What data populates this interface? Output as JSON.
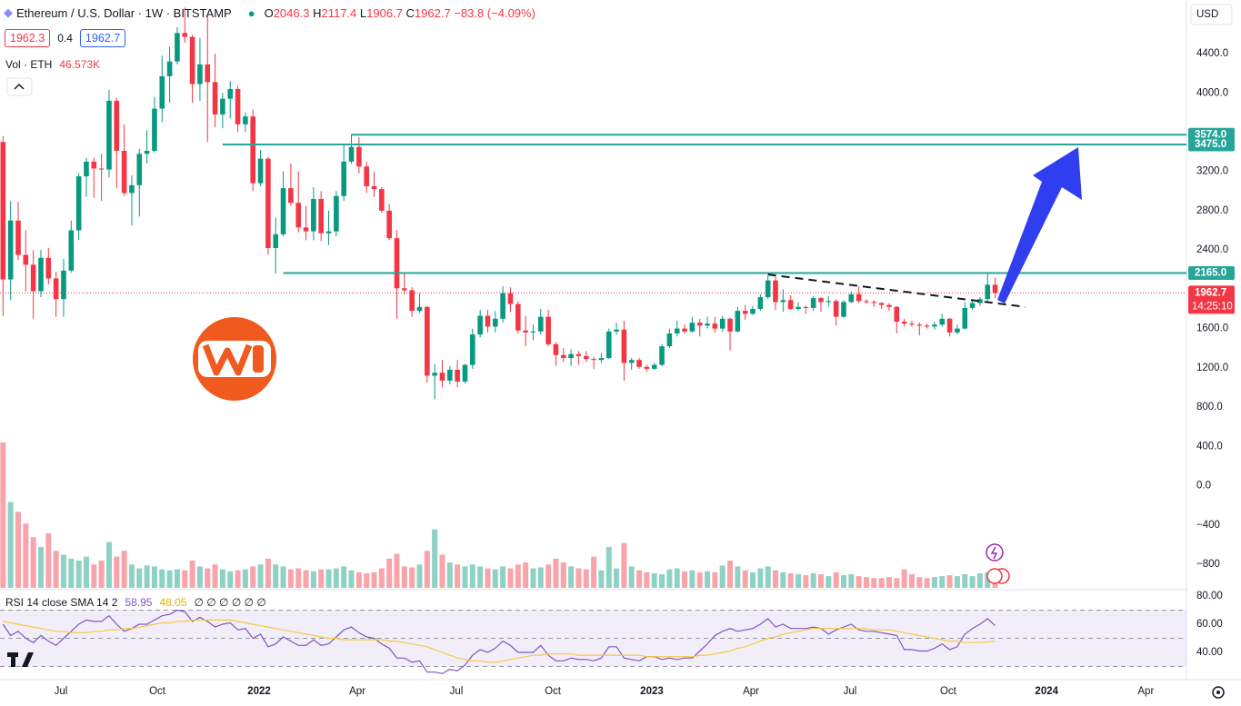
{
  "chart_data": {
    "type": "candlestick",
    "title": "Ethereum / U.S. Dollar · 1W · BITSTAMP",
    "ohlc_labels": [
      "O",
      "H",
      "L",
      "C"
    ],
    "change": "−83.8 (−4.09%)",
    "price_boxes": [
      "1962.3",
      "0.4",
      "1962.7"
    ],
    "currency": "USD",
    "countdown": "14:25:10",
    "up_color": "#089981",
    "down_color": "#f23645",
    "xlim": [
      -0.4,
      156.26
    ],
    "xticks": [
      {
        "value": 7.64,
        "label": "Jul"
      },
      {
        "value": 20.37,
        "label": "Oct"
      },
      {
        "value": 33.81,
        "label": "2022"
      },
      {
        "value": 46.78,
        "label": "Apr"
      },
      {
        "value": 59.86,
        "label": "Jul"
      },
      {
        "value": 72.59,
        "label": "Oct"
      },
      {
        "value": 85.67,
        "label": "2023"
      },
      {
        "value": 98.76,
        "label": "Apr"
      },
      {
        "value": 111.84,
        "label": "Jul"
      },
      {
        "value": 124.8,
        "label": "Oct"
      },
      {
        "value": 137.8,
        "label": "2024"
      },
      {
        "value": 150.9,
        "label": "Apr"
      }
    ],
    "ylim": [
      -1041,
      4946
    ],
    "yticks": [
      {
        "value": 4400,
        "label": "4400.0"
      },
      {
        "value": 4000,
        "label": "4000.0"
      },
      {
        "value": 3200,
        "label": "3200.0"
      },
      {
        "value": 2800,
        "label": "2800.0"
      },
      {
        "value": 2400,
        "label": "2400.0"
      },
      {
        "value": 1600,
        "label": "1600.0"
      },
      {
        "value": 1200,
        "label": "1200.0"
      },
      {
        "value": 800,
        "label": "800.0"
      },
      {
        "value": 400,
        "label": "400.0"
      },
      {
        "value": 0,
        "label": "0.0"
      },
      {
        "value": -400,
        "label": "−400"
      },
      {
        "value": -800,
        "label": "−800"
      }
    ],
    "levels": [
      {
        "value": 3574,
        "label": "3574.0",
        "from": 46
      },
      {
        "value": 3475,
        "label": "3475.0",
        "from": 29
      },
      {
        "value": 2165,
        "label": "2165.0",
        "from": 37
      }
    ],
    "level_color": "#26a69a",
    "trendline": {
      "x": [
        101,
        135
      ],
      "y": [
        2150,
        1820
      ]
    },
    "ohlc": [
      [
        3500,
        3560,
        1730,
        2100
      ],
      [
        2100,
        2900,
        1890,
        2700
      ],
      [
        2700,
        2890,
        2300,
        2350
      ],
      [
        2350,
        2600,
        1980,
        2250
      ],
      [
        2250,
        2400,
        1700,
        1980
      ],
      [
        1980,
        2400,
        1920,
        2320
      ],
      [
        2320,
        2420,
        2050,
        2110
      ],
      [
        2110,
        2180,
        1720,
        1900
      ],
      [
        1900,
        2310,
        1720,
        2190
      ],
      [
        2190,
        2700,
        2170,
        2600
      ],
      [
        2600,
        3180,
        2500,
        3150
      ],
      [
        3150,
        3340,
        2940,
        3300
      ],
      [
        3300,
        3340,
        2930,
        3230
      ],
      [
        3230,
        3380,
        2900,
        3220
      ],
      [
        3220,
        4030,
        3140,
        3920
      ],
      [
        3920,
        3950,
        3030,
        3410
      ],
      [
        3410,
        3680,
        2950,
        2980
      ],
      [
        2980,
        3160,
        2650,
        3060
      ],
      [
        3060,
        3430,
        2740,
        3380
      ],
      [
        3380,
        3620,
        3280,
        3410
      ],
      [
        3410,
        3960,
        3390,
        3840
      ],
      [
        3840,
        4380,
        3700,
        4170
      ],
      [
        4170,
        4470,
        3900,
        4320
      ],
      [
        4320,
        4670,
        4290,
        4610
      ],
      [
        4610,
        4870,
        4510,
        4570
      ],
      [
        4570,
        4590,
        3900,
        4090
      ],
      [
        4090,
        4560,
        3920,
        4290
      ],
      [
        4290,
        4780,
        3500,
        4110
      ],
      [
        4110,
        4400,
        3650,
        3780
      ],
      [
        3780,
        4000,
        3640,
        3940
      ],
      [
        3940,
        4120,
        3740,
        4040
      ],
      [
        4040,
        4070,
        3600,
        3680
      ],
      [
        3680,
        3800,
        3600,
        3760
      ],
      [
        3760,
        3830,
        3000,
        3080
      ],
      [
        3080,
        3420,
        3050,
        3330
      ],
      [
        3330,
        3350,
        2350,
        2420
      ],
      [
        2420,
        2730,
        2160,
        2560
      ],
      [
        2560,
        3200,
        2540,
        3030
      ],
      [
        3030,
        3280,
        2850,
        2880
      ],
      [
        2880,
        3200,
        2580,
        2630
      ],
      [
        2630,
        2850,
        2500,
        2590
      ],
      [
        2590,
        3040,
        2500,
        2920
      ],
      [
        2920,
        3000,
        2490,
        2570
      ],
      [
        2570,
        2800,
        2450,
        2590
      ],
      [
        2590,
        3000,
        2540,
        2950
      ],
      [
        2950,
        3480,
        2900,
        3300
      ],
      [
        3300,
        3580,
        3280,
        3450
      ],
      [
        3450,
        3550,
        3180,
        3250
      ],
      [
        3250,
        3300,
        2980,
        3050
      ],
      [
        3050,
        3200,
        2940,
        3020
      ],
      [
        3020,
        3040,
        2780,
        2800
      ],
      [
        2800,
        2870,
        2500,
        2520
      ],
      [
        2520,
        2600,
        1700,
        2010
      ],
      [
        2010,
        2160,
        1950,
        1990
      ],
      [
        1990,
        2020,
        1720,
        1780
      ],
      [
        1780,
        1960,
        1760,
        1820
      ],
      [
        1820,
        1830,
        1050,
        1120
      ],
      [
        1120,
        1240,
        880,
        1150
      ],
      [
        1150,
        1280,
        1000,
        1070
      ],
      [
        1070,
        1220,
        1030,
        1180
      ],
      [
        1180,
        1280,
        1000,
        1060
      ],
      [
        1060,
        1240,
        1040,
        1230
      ],
      [
        1230,
        1600,
        1190,
        1540
      ],
      [
        1540,
        1790,
        1510,
        1730
      ],
      [
        1730,
        1790,
        1560,
        1620
      ],
      [
        1620,
        1780,
        1560,
        1700
      ],
      [
        1700,
        2030,
        1660,
        1960
      ],
      [
        1960,
        2020,
        1770,
        1850
      ],
      [
        1850,
        1880,
        1550,
        1580
      ],
      [
        1580,
        1730,
        1420,
        1560
      ],
      [
        1560,
        1640,
        1480,
        1570
      ],
      [
        1570,
        1800,
        1540,
        1720
      ],
      [
        1720,
        1790,
        1420,
        1440
      ],
      [
        1440,
        1460,
        1220,
        1330
      ],
      [
        1330,
        1400,
        1260,
        1300
      ],
      [
        1300,
        1390,
        1220,
        1340
      ],
      [
        1340,
        1370,
        1230,
        1320
      ],
      [
        1320,
        1370,
        1260,
        1290
      ],
      [
        1290,
        1310,
        1190,
        1280
      ],
      [
        1280,
        1350,
        1250,
        1300
      ],
      [
        1300,
        1600,
        1290,
        1570
      ],
      [
        1570,
        1660,
        1540,
        1590
      ],
      [
        1590,
        1680,
        1070,
        1250
      ],
      [
        1250,
        1300,
        1180,
        1280
      ],
      [
        1280,
        1300,
        1190,
        1210
      ],
      [
        1210,
        1230,
        1160,
        1190
      ],
      [
        1190,
        1250,
        1180,
        1230
      ],
      [
        1230,
        1440,
        1220,
        1420
      ],
      [
        1420,
        1600,
        1400,
        1550
      ],
      [
        1550,
        1680,
        1520,
        1600
      ],
      [
        1600,
        1640,
        1550,
        1570
      ],
      [
        1570,
        1720,
        1560,
        1660
      ],
      [
        1660,
        1700,
        1520,
        1630
      ],
      [
        1630,
        1720,
        1600,
        1650
      ],
      [
        1650,
        1720,
        1560,
        1600
      ],
      [
        1600,
        1730,
        1570,
        1700
      ],
      [
        1700,
        1710,
        1380,
        1570
      ],
      [
        1570,
        1820,
        1560,
        1780
      ],
      [
        1780,
        1840,
        1690,
        1750
      ],
      [
        1750,
        1830,
        1740,
        1800
      ],
      [
        1800,
        1950,
        1780,
        1920
      ],
      [
        1920,
        2140,
        1900,
        2090
      ],
      [
        2090,
        2130,
        1790,
        1870
      ],
      [
        1870,
        2000,
        1770,
        1890
      ],
      [
        1890,
        1940,
        1790,
        1800
      ],
      [
        1800,
        1870,
        1780,
        1820
      ],
      [
        1820,
        1830,
        1750,
        1810
      ],
      [
        1810,
        1930,
        1780,
        1910
      ],
      [
        1910,
        1920,
        1770,
        1870
      ],
      [
        1870,
        1930,
        1820,
        1880
      ],
      [
        1880,
        1900,
        1630,
        1720
      ],
      [
        1720,
        1890,
        1710,
        1870
      ],
      [
        1870,
        1980,
        1860,
        1950
      ],
      [
        1950,
        2030,
        1860,
        1880
      ],
      [
        1880,
        1900,
        1850,
        1870
      ],
      [
        1870,
        1890,
        1820,
        1860
      ],
      [
        1860,
        1870,
        1800,
        1840
      ],
      [
        1840,
        1860,
        1780,
        1820
      ],
      [
        1820,
        1830,
        1550,
        1670
      ],
      [
        1670,
        1700,
        1620,
        1650
      ],
      [
        1650,
        1680,
        1620,
        1640
      ],
      [
        1640,
        1660,
        1530,
        1630
      ],
      [
        1630,
        1650,
        1600,
        1620
      ],
      [
        1620,
        1670,
        1590,
        1640
      ],
      [
        1640,
        1750,
        1620,
        1700
      ],
      [
        1700,
        1710,
        1520,
        1560
      ],
      [
        1560,
        1640,
        1540,
        1600
      ],
      [
        1600,
        1870,
        1590,
        1810
      ],
      [
        1810,
        1900,
        1790,
        1860
      ],
      [
        1860,
        1920,
        1830,
        1900
      ],
      [
        1900,
        2160,
        1860,
        2046.5
      ],
      [
        2046.3,
        2117.4,
        1906.7,
        1962.7
      ]
    ],
    "volume": {
      "name": "Vol · ETH",
      "last_label": "46.573K",
      "values": [
        745,
        440,
        390,
        330,
        260,
        210,
        280,
        190,
        170,
        150,
        140,
        160,
        120,
        140,
        235,
        160,
        190,
        120,
        100,
        115,
        110,
        95,
        90,
        95,
        90,
        140,
        110,
        100,
        120,
        95,
        85,
        90,
        95,
        110,
        120,
        150,
        120,
        110,
        95,
        100,
        90,
        85,
        95,
        95,
        100,
        110,
        90,
        80,
        75,
        80,
        100,
        150,
        175,
        110,
        105,
        120,
        190,
        300,
        170,
        130,
        120,
        110,
        120,
        110,
        100,
        95,
        110,
        100,
        120,
        130,
        100,
        105,
        120,
        150,
        130,
        110,
        100,
        95,
        160,
        90,
        210,
        100,
        230,
        110,
        90,
        80,
        75,
        70,
        95,
        100,
        85,
        90,
        80,
        85,
        80,
        115,
        140,
        110,
        90,
        80,
        100,
        110,
        90,
        80,
        75,
        70,
        65,
        75,
        70,
        60,
        80,
        65,
        70,
        60,
        55,
        50,
        50,
        55,
        50,
        95,
        70,
        55,
        50,
        55,
        60,
        65,
        60,
        70,
        60,
        75,
        80,
        46.573
      ]
    },
    "rsi": {
      "title": "RSI 14 close SMA 14 2",
      "extra": "∅ ∅ ∅ ∅ ∅ ∅",
      "ylim": [
        22.6,
        83.9
      ],
      "yticks": [
        {
          "value": 80,
          "label": "80.00"
        },
        {
          "value": 60,
          "label": "60.00"
        },
        {
          "value": 40,
          "label": "40.00"
        }
      ],
      "levels": [
        70,
        50,
        30
      ],
      "series": [
        {
          "name": "RSI",
          "color": "#7e57c2",
          "values": [
            60,
            52,
            55,
            50,
            47,
            52,
            48,
            45,
            50,
            55,
            60,
            63,
            62,
            62,
            66,
            60,
            55,
            57,
            60,
            60,
            63,
            66,
            67,
            70,
            69,
            62,
            65,
            62,
            58,
            60,
            61,
            56,
            57,
            50,
            53,
            44,
            46,
            51,
            48,
            45,
            45,
            49,
            45,
            46,
            51,
            56,
            58,
            54,
            51,
            50,
            46,
            43,
            36,
            36,
            33,
            34,
            26,
            26,
            25,
            28,
            27,
            31,
            38,
            42,
            40,
            43,
            48,
            45,
            40,
            40,
            40,
            45,
            38,
            34,
            34,
            36,
            35,
            35,
            34,
            36,
            44,
            44,
            36,
            35,
            34,
            37,
            37,
            35,
            36,
            35,
            36,
            36,
            41,
            46,
            52,
            55,
            57,
            55,
            56,
            57,
            60,
            64,
            58,
            60,
            57,
            57,
            57,
            58,
            57,
            53,
            56,
            58,
            60,
            56,
            55,
            55,
            54,
            53,
            52,
            42,
            42,
            41,
            41,
            43,
            46,
            42,
            44,
            53,
            57,
            60,
            64,
            58.95
          ]
        },
        {
          "name": "SMA",
          "color": "#f5c842",
          "values": [
            62,
            61,
            60,
            59,
            58,
            57,
            56,
            55,
            55,
            54,
            54,
            54,
            55,
            55,
            56,
            56,
            57,
            57,
            58,
            59,
            60,
            61,
            61,
            62,
            62,
            63,
            63,
            63,
            63,
            63,
            63,
            62,
            61,
            60,
            59,
            58,
            57,
            56,
            55,
            54,
            53,
            52,
            51,
            50,
            50,
            49,
            49,
            49,
            49,
            49,
            49,
            48,
            48,
            47,
            46,
            45,
            44,
            42,
            40,
            38,
            36,
            35,
            34,
            34,
            33,
            33,
            34,
            35,
            36,
            37,
            38,
            38,
            39,
            39,
            39,
            39,
            38,
            38,
            38,
            38,
            38,
            38,
            38,
            38,
            38,
            37,
            37,
            37,
            37,
            37,
            37,
            37,
            38,
            38,
            39,
            40,
            41,
            43,
            44,
            46,
            48,
            50,
            51,
            53,
            54,
            55,
            56,
            57,
            57,
            57,
            57,
            57,
            57,
            57,
            57,
            56,
            56,
            56,
            55,
            54,
            53,
            52,
            51,
            50,
            49,
            48,
            48,
            47,
            47,
            47,
            47.5,
            48.05
          ]
        }
      ]
    }
  }
}
